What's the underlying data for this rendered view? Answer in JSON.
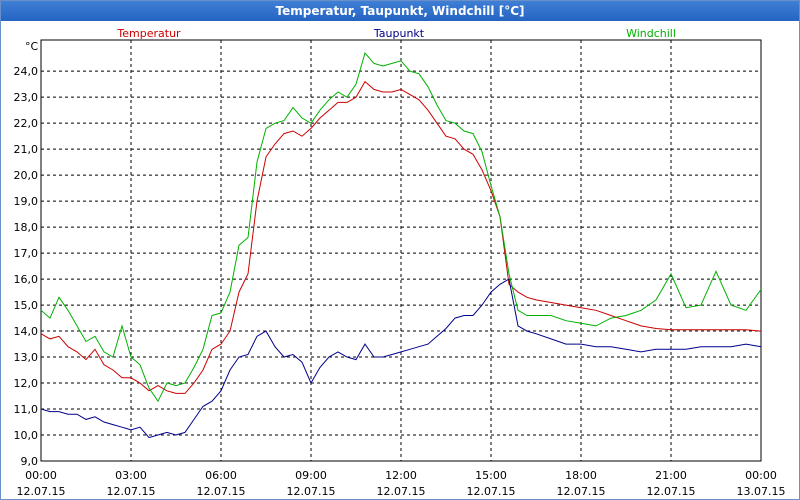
{
  "window": {
    "title": "Temperatur, Taupunkt, Windchill [°C]"
  },
  "chart_data": {
    "type": "line",
    "title": "Temperatur, Taupunkt, Windchill [°C]",
    "ylabel": "°C",
    "ylim": [
      9.0,
      25.2
    ],
    "yticks": [
      "9,0",
      "10,0",
      "11,0",
      "12,0",
      "13,0",
      "14,0",
      "15,0",
      "16,0",
      "17,0",
      "18,0",
      "19,0",
      "20,0",
      "21,0",
      "22,0",
      "23,0",
      "24,0"
    ],
    "xlim": [
      0,
      24
    ],
    "xticks": [
      {
        "time": "00:00",
        "date": "12.07.15"
      },
      {
        "time": "03:00",
        "date": "12.07.15"
      },
      {
        "time": "06:00",
        "date": "12.07.15"
      },
      {
        "time": "09:00",
        "date": "12.07.15"
      },
      {
        "time": "12:00",
        "date": "12.07.15"
      },
      {
        "time": "15:00",
        "date": "12.07.15"
      },
      {
        "time": "18:00",
        "date": "12.07.15"
      },
      {
        "time": "21:00",
        "date": "12.07.15"
      },
      {
        "time": "00:00",
        "date": "13.07.15"
      }
    ],
    "grid": true,
    "legend": [
      "Temperatur",
      "Taupunkt",
      "Windchill"
    ],
    "series": [
      {
        "name": "Temperatur",
        "color": "#cc0000",
        "x": [
          0,
          0.3,
          0.6,
          0.9,
          1.2,
          1.5,
          1.8,
          2.1,
          2.4,
          2.7,
          3.0,
          3.3,
          3.6,
          3.9,
          4.2,
          4.5,
          4.8,
          5.1,
          5.4,
          5.7,
          6.0,
          6.3,
          6.6,
          6.9,
          7.2,
          7.5,
          7.8,
          8.1,
          8.4,
          8.7,
          9.0,
          9.3,
          9.6,
          9.9,
          10.2,
          10.5,
          10.8,
          11.1,
          11.4,
          11.7,
          12.0,
          12.3,
          12.6,
          12.9,
          13.2,
          13.5,
          13.8,
          14.1,
          14.4,
          14.7,
          15.0,
          15.3,
          15.6,
          15.9,
          16.2,
          16.5,
          17,
          17.5,
          18,
          18.5,
          19,
          19.5,
          20,
          20.5,
          21,
          21.5,
          22,
          22.5,
          23,
          23.5,
          24
        ],
        "values": [
          13.9,
          13.7,
          13.8,
          13.4,
          13.2,
          12.9,
          13.3,
          12.7,
          12.5,
          12.2,
          12.2,
          12.0,
          11.7,
          11.9,
          11.7,
          11.6,
          11.6,
          12.0,
          12.5,
          13.3,
          13.5,
          14.0,
          15.5,
          16.2,
          19.0,
          20.7,
          21.2,
          21.6,
          21.7,
          21.5,
          21.8,
          22.2,
          22.5,
          22.8,
          22.8,
          23.0,
          23.6,
          23.3,
          23.2,
          23.2,
          23.3,
          23.1,
          22.9,
          22.5,
          22.0,
          21.5,
          21.4,
          21.0,
          20.8,
          20.2,
          19.4,
          18.4,
          15.8,
          15.5,
          15.3,
          15.2,
          15.1,
          15.0,
          14.9,
          14.8,
          14.6,
          14.4,
          14.2,
          14.1,
          14.05,
          14.05,
          14.05,
          14.05,
          14.05,
          14.05,
          14.0
        ]
      },
      {
        "name": "Taupunkt",
        "color": "#00008b",
        "x": [
          0,
          0.3,
          0.6,
          0.9,
          1.2,
          1.5,
          1.8,
          2.1,
          2.4,
          2.7,
          3.0,
          3.3,
          3.6,
          3.9,
          4.2,
          4.5,
          4.8,
          5.1,
          5.4,
          5.7,
          6.0,
          6.3,
          6.6,
          6.9,
          7.2,
          7.5,
          7.8,
          8.1,
          8.4,
          8.7,
          9.0,
          9.3,
          9.6,
          9.9,
          10.2,
          10.5,
          10.8,
          11.1,
          11.4,
          11.7,
          12.0,
          12.3,
          12.6,
          12.9,
          13.2,
          13.5,
          13.8,
          14.1,
          14.4,
          14.7,
          15.0,
          15.3,
          15.6,
          15.9,
          16.2,
          16.5,
          17,
          17.5,
          18,
          18.5,
          19,
          19.5,
          20,
          20.5,
          21,
          21.5,
          22,
          22.5,
          23,
          23.5,
          24
        ],
        "values": [
          11.0,
          10.9,
          10.9,
          10.8,
          10.8,
          10.6,
          10.7,
          10.5,
          10.4,
          10.3,
          10.2,
          10.3,
          9.9,
          10.0,
          10.1,
          10.0,
          10.1,
          10.6,
          11.1,
          11.3,
          11.7,
          12.5,
          13.0,
          13.1,
          13.8,
          14.0,
          13.4,
          13.0,
          13.1,
          12.8,
          12.0,
          12.6,
          13.0,
          13.2,
          13.0,
          12.9,
          13.5,
          13.0,
          13.0,
          13.1,
          13.2,
          13.3,
          13.4,
          13.5,
          13.8,
          14.1,
          14.5,
          14.6,
          14.6,
          15.0,
          15.5,
          15.8,
          16.0,
          14.2,
          14.0,
          13.9,
          13.7,
          13.5,
          13.5,
          13.4,
          13.4,
          13.3,
          13.2,
          13.3,
          13.3,
          13.3,
          13.4,
          13.4,
          13.4,
          13.5,
          13.4
        ]
      },
      {
        "name": "Windchill",
        "color": "#00b000",
        "x": [
          0,
          0.3,
          0.6,
          0.9,
          1.2,
          1.5,
          1.8,
          2.1,
          2.4,
          2.7,
          3.0,
          3.3,
          3.6,
          3.9,
          4.2,
          4.5,
          4.8,
          5.1,
          5.4,
          5.7,
          6.0,
          6.3,
          6.6,
          6.9,
          7.2,
          7.5,
          7.8,
          8.1,
          8.4,
          8.7,
          9.0,
          9.3,
          9.6,
          9.9,
          10.2,
          10.5,
          10.8,
          11.1,
          11.4,
          11.7,
          12.0,
          12.3,
          12.6,
          12.9,
          13.2,
          13.5,
          13.8,
          14.1,
          14.4,
          14.7,
          15.0,
          15.3,
          15.6,
          15.9,
          16.2,
          16.5,
          17,
          17.5,
          18,
          18.5,
          19,
          19.5,
          20,
          20.5,
          21,
          21.5,
          22,
          22.5,
          23,
          23.5,
          24
        ],
        "values": [
          14.8,
          14.5,
          15.3,
          14.8,
          14.2,
          13.6,
          13.8,
          13.2,
          13.0,
          14.2,
          13.0,
          12.7,
          11.8,
          11.3,
          12.0,
          11.9,
          12.0,
          12.6,
          13.3,
          14.6,
          14.7,
          15.5,
          17.3,
          17.6,
          20.5,
          21.8,
          22.0,
          22.1,
          22.6,
          22.2,
          22.0,
          22.5,
          22.9,
          23.2,
          23.0,
          23.5,
          24.7,
          24.3,
          24.2,
          24.3,
          24.4,
          24.0,
          23.9,
          23.4,
          22.7,
          22.1,
          22.0,
          21.7,
          21.6,
          20.9,
          19.6,
          18.4,
          16.2,
          14.8,
          14.6,
          14.6,
          14.6,
          14.4,
          14.3,
          14.2,
          14.5,
          14.6,
          14.8,
          15.2,
          16.2,
          14.9,
          15.0,
          16.3,
          15.0,
          14.8,
          15.6
        ]
      }
    ]
  }
}
